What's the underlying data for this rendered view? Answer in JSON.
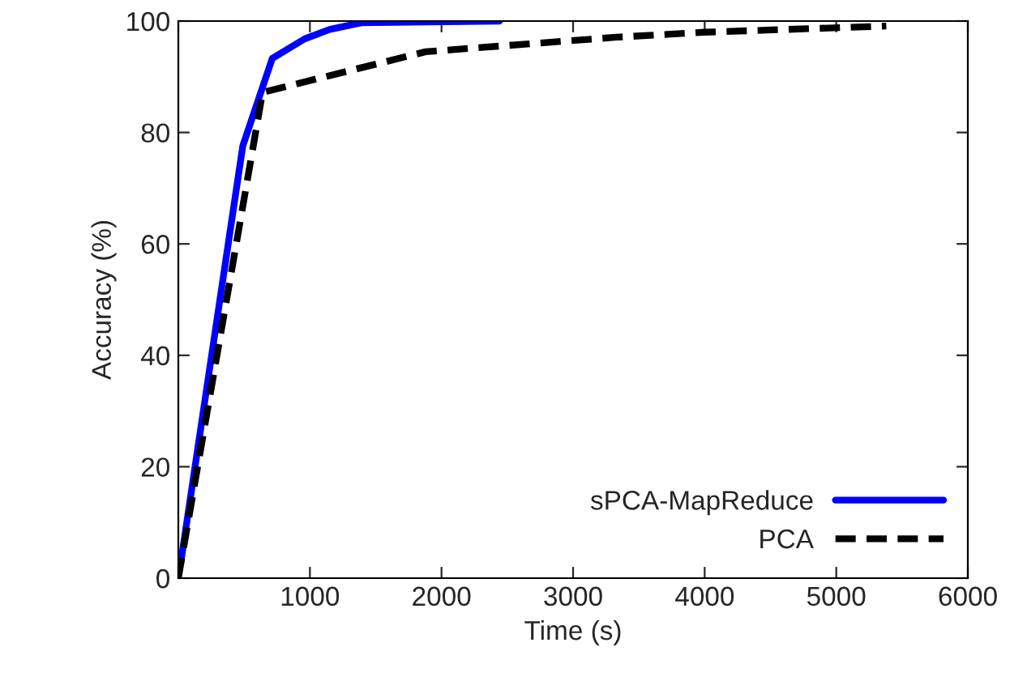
{
  "chart_data": {
    "type": "line",
    "xlabel": "Time (s)",
    "ylabel": "Accuracy (%)",
    "series": [
      {
        "name": "sPCA-MapReduce",
        "color": "#0000ff",
        "line_style": "solid",
        "x": [
          20,
          490,
          714,
          960,
          1150,
          1390,
          2440
        ],
        "values": [
          3,
          77.6,
          93.3,
          96.8,
          98.5,
          99.7,
          100
        ]
      },
      {
        "name": "PCA",
        "color": "#000000",
        "line_style": "dashed",
        "x": [
          0,
          640,
          1880,
          3330,
          4000,
          5380
        ],
        "values": [
          0,
          87.2,
          94.5,
          97.1,
          98,
          99.1
        ]
      }
    ],
    "xlim": [
      0,
      6000
    ],
    "xticks": [
      {
        "value": 0,
        "label": null
      },
      1000,
      2000,
      3000,
      4000,
      5000,
      6000
    ],
    "ylim": [
      0,
      100
    ],
    "yticks": [
      0,
      20,
      40,
      60,
      80,
      100
    ],
    "grid": false,
    "legend": "bottom right",
    "marker": "none"
  }
}
